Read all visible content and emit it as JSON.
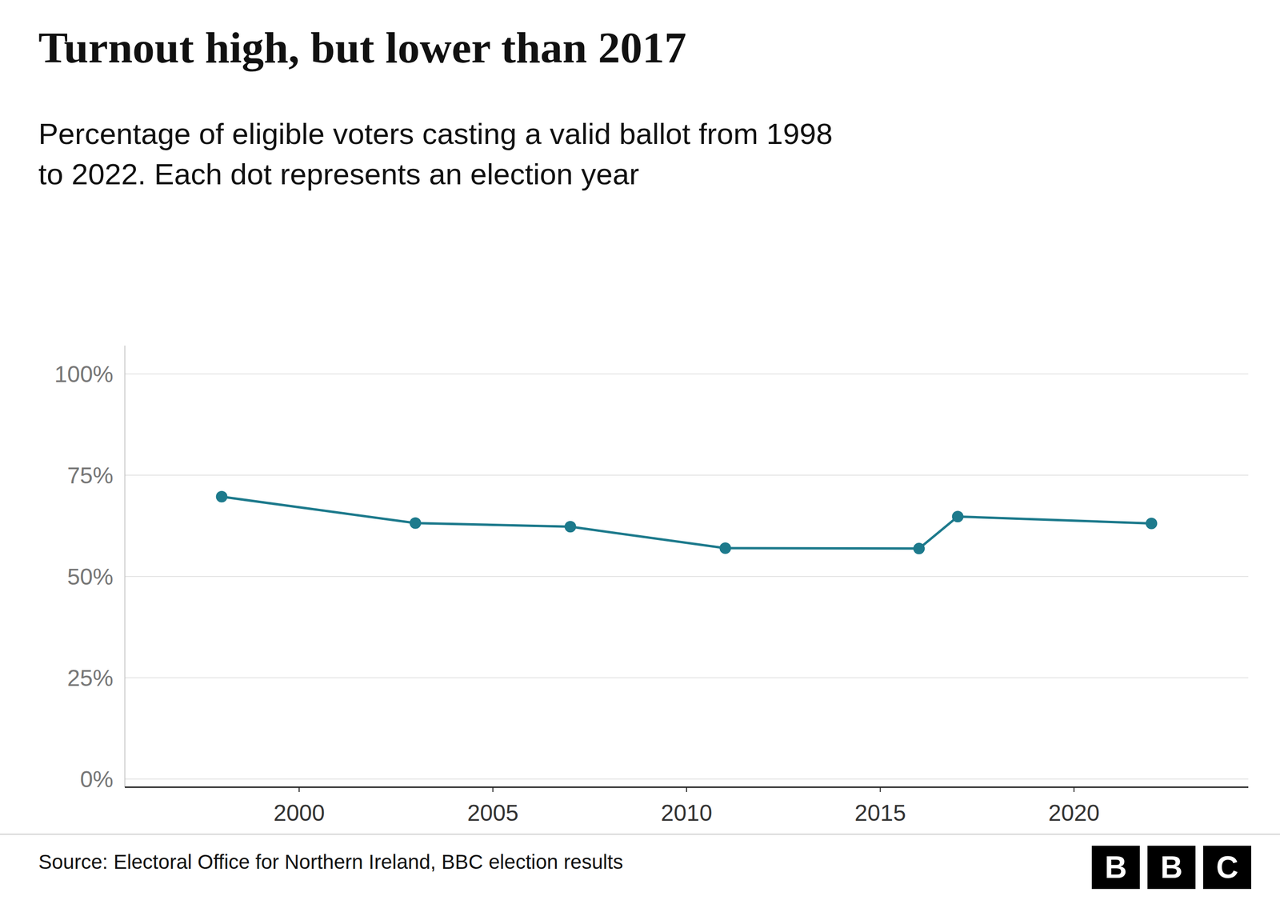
{
  "chart_data": {
    "type": "line",
    "title": "Turnout high, but lower than 2017",
    "subtitle": [
      "Percentage of eligible voters casting a valid ballot from 1998",
      "to 2022. Each dot represents an election year"
    ],
    "source": "Source: Electoral Office for Northern Ireland, BBC election results",
    "logo": "BBC",
    "x": [
      1998,
      2003,
      2007,
      2011,
      2016,
      2017,
      2022
    ],
    "values": [
      69.7,
      63.2,
      62.3,
      57.0,
      56.9,
      64.8,
      63.1
    ],
    "color": "#1d7a8c",
    "marker": "circle",
    "line_style": "solid",
    "xlim": [
      1995.5,
      2024.5
    ],
    "ylim": [
      -2,
      107
    ],
    "xticks": [
      2000,
      2005,
      2010,
      2015,
      2020
    ],
    "yticks": [
      {
        "value": 0,
        "label": "0%"
      },
      {
        "value": 25,
        "label": "25%"
      },
      {
        "value": 50,
        "label": "50%"
      },
      {
        "value": 75,
        "label": "75%"
      },
      {
        "value": 100,
        "label": "100%"
      }
    ],
    "grid": true
  }
}
